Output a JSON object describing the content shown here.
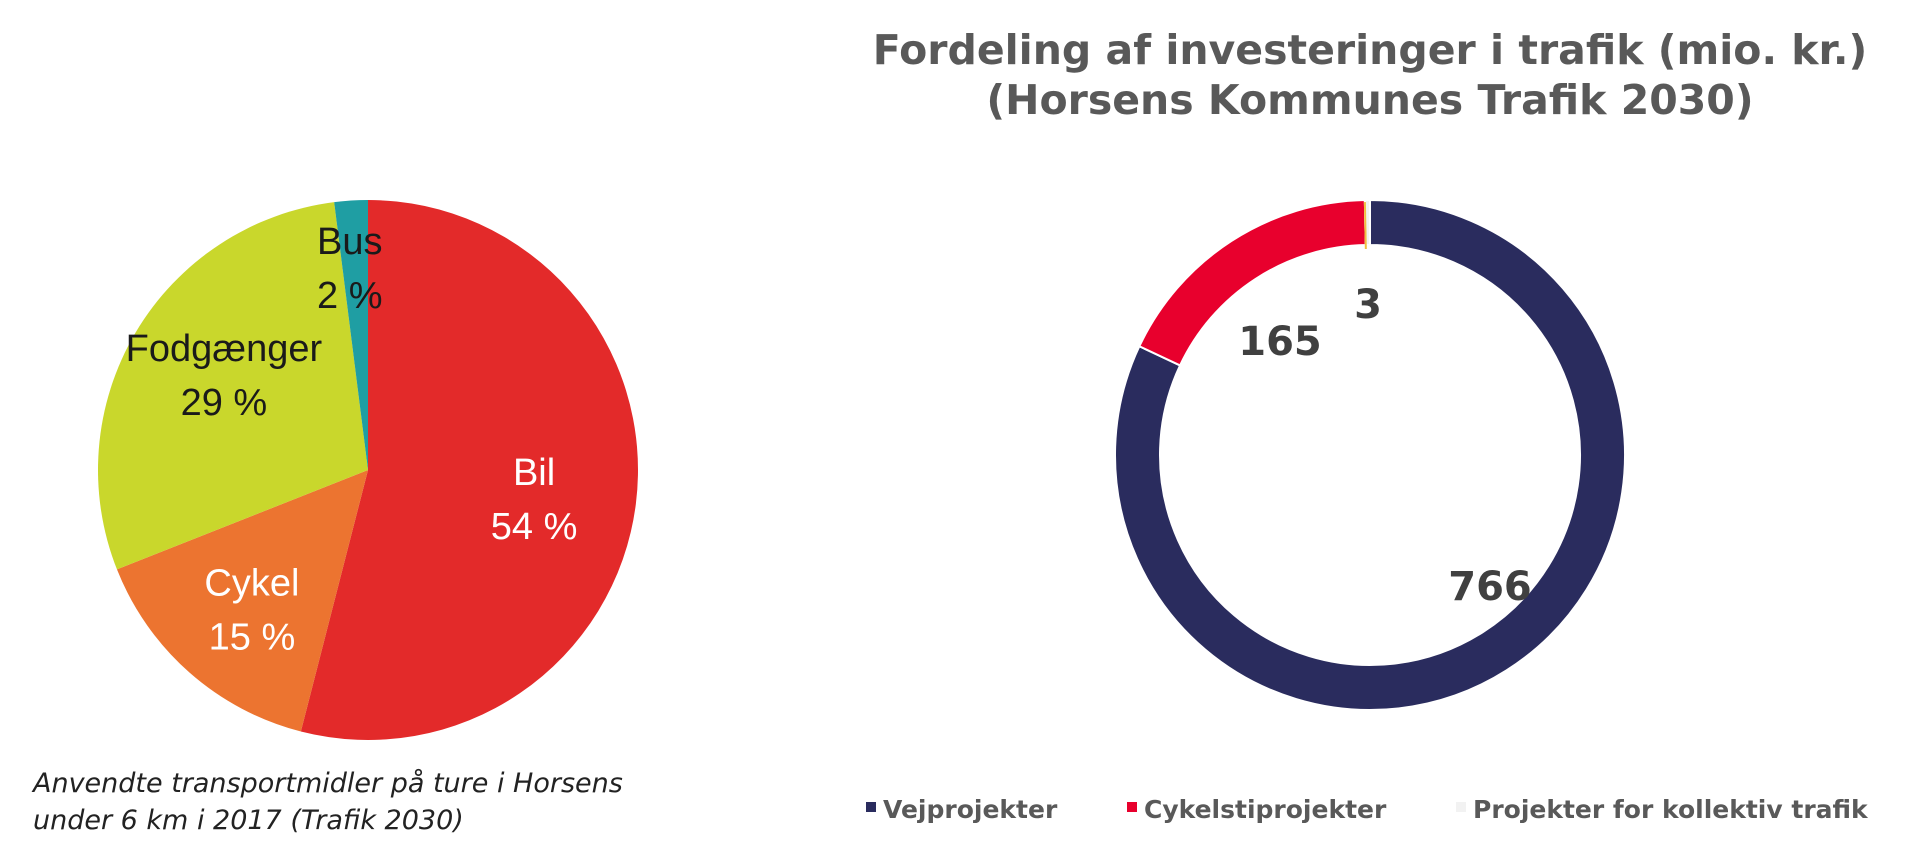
{
  "chart_data": [
    {
      "type": "pie",
      "caption_lines": [
        "Anvendte transportmidler på ture i Horsens",
        "under 6 km i 2017 (Trafik 2030)"
      ],
      "categories": [
        "Bil",
        "Cykel",
        "Fodgænger",
        "Bus"
      ],
      "values": [
        54,
        15,
        29,
        2
      ],
      "value_labels": [
        "54 %",
        "15 %",
        "29 %",
        "2 %"
      ],
      "colors": [
        "#e32a2a",
        "#ec7430",
        "#c9d72c",
        "#1f9ea3"
      ],
      "label_colors": [
        "#ffffff",
        "#ffffff",
        "#1a1a1a",
        "#1a1a1a"
      ]
    },
    {
      "type": "donut",
      "title_lines": [
        "Fordeling af investeringer i trafik (mio. kr.)",
        "(Horsens Kommunes Trafik 2030)"
      ],
      "categories": [
        "Vejprojekter",
        "Cykelstiprojekter",
        "Projekter for kollektiv trafik"
      ],
      "values": [
        766,
        165,
        3
      ],
      "value_labels": [
        "766",
        "165",
        "3"
      ],
      "colors": [
        "#2a2c5e",
        "#e8002d",
        "#f2f2f2"
      ],
      "separator_color": "#f0c040",
      "legend_position": "bottom"
    }
  ]
}
